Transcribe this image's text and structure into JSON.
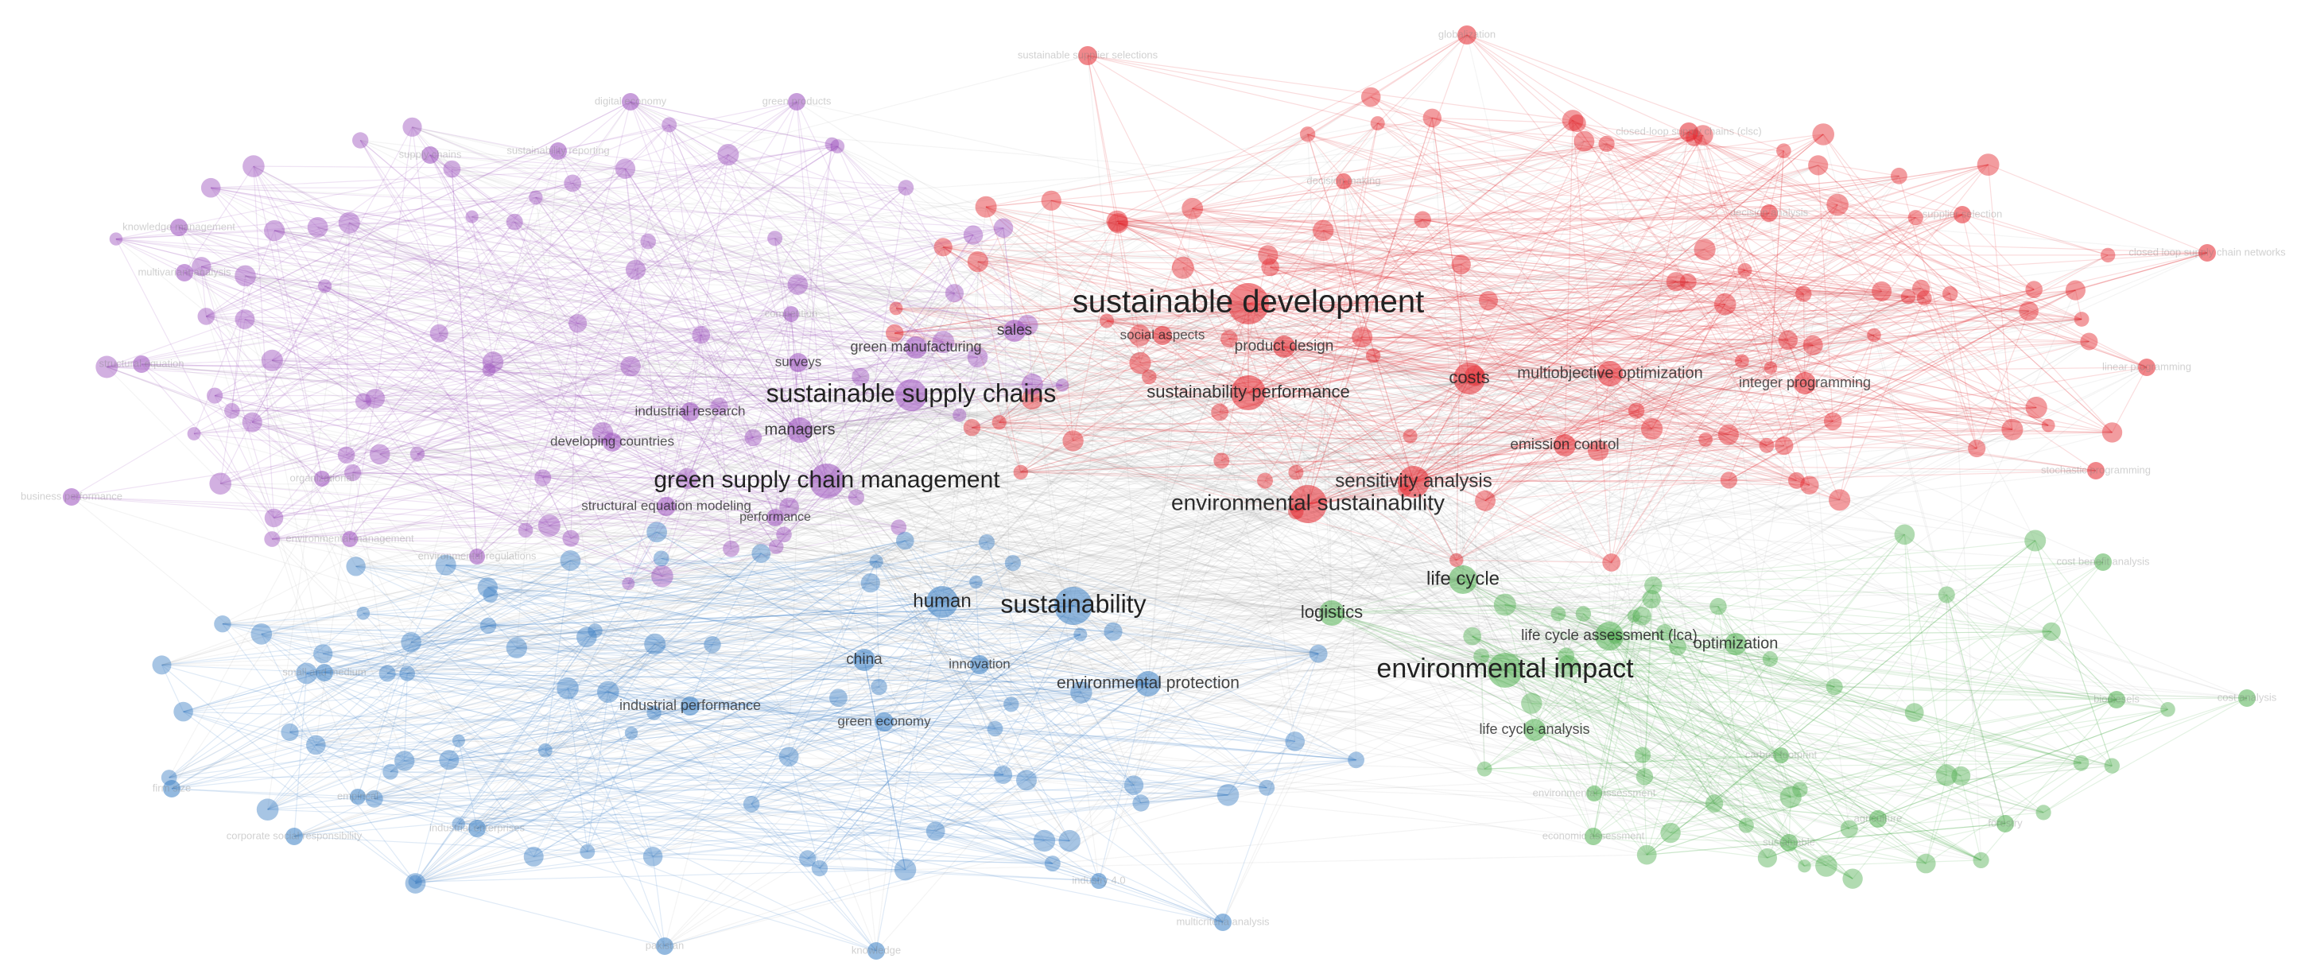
{
  "clusters": {
    "red": {
      "color": "#e3242b"
    },
    "purple": {
      "color": "#9b4fbd"
    },
    "blue": {
      "color": "#3b7fc4"
    },
    "green": {
      "color": "#52b052"
    }
  },
  "labels": {
    "red": [
      "sustainable development",
      "sustainability performance",
      "costs",
      "multiobjective optimization",
      "integer programming",
      "product design",
      "social aspects",
      "sensitivity analysis",
      "environmental sustainability",
      "emission control",
      "sustainable supplier selections",
      "globalization",
      "closed-loop supply chains (clsc)",
      "decision analysis",
      "supplier selection",
      "closed loop supply chain networks",
      "linear programming",
      "stochastic programming",
      "decision making"
    ],
    "purple": [
      "sustainable supply chains",
      "green supply chain management",
      "managers",
      "sales",
      "green manufacturing",
      "surveys",
      "industrial research",
      "developing countries",
      "structural equation modeling",
      "performance",
      "knowledge management",
      "multivariant analysis",
      "structural equation",
      "business performance",
      "digital economy",
      "green products",
      "supply chains",
      "sustainability reporting",
      "competition",
      "organizational",
      "environmental management",
      "environmental regulations"
    ],
    "blue": [
      "sustainability",
      "human",
      "china",
      "innovation",
      "environmental protection",
      "industrial performance",
      "green economy",
      "firm size",
      "corporate social responsibility",
      "industrial enterprises",
      "small and medium",
      "pakistan",
      "knowledge",
      "multicriteria analysis",
      "industry 4.0",
      "empirical"
    ],
    "green": [
      "environmental impact",
      "life cycle",
      "logistics",
      "life cycle assessment (lca)",
      "optimization",
      "life cycle analysis",
      "cost benefit analysis",
      "cost analysis",
      "biodiesels",
      "forestry",
      "agriculture",
      "sustainable",
      "economic assessment",
      "environmental assessment",
      "carbon footprint"
    ]
  }
}
